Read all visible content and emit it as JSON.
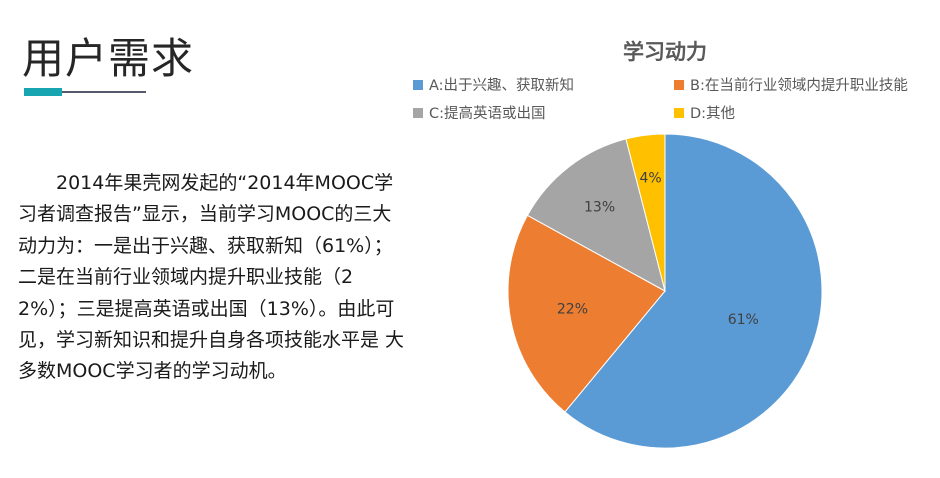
{
  "header": {
    "title": "用户需求"
  },
  "body": {
    "paragraph": "2014年果壳网发起的“2014年MOOC学习者调查报告”显示，当前学习MOOC的三大动力为：一是出于兴趣、获取新知（61%）；二是在当前行业领域内提升职业技能（22%）；三是提高英语或出国（13%）。由此可见，学习新知识和提升自身各项技能水平是 大多数MOOC学习者的学习动机。"
  },
  "colors": {
    "accent": "#17a5b1",
    "underline": "#555a6b"
  },
  "chart_data": {
    "type": "pie",
    "title": "学习动力",
    "legend_position": "top",
    "slices": [
      {
        "name": "A:出于兴趣、获取新知",
        "value": 61,
        "label": "61%",
        "color": "#5b9bd5"
      },
      {
        "name": "B:在当前行业领域内提升职业技能",
        "value": 22,
        "label": "22%",
        "color": "#ed7d31"
      },
      {
        "name": "C:提高英语或出国",
        "value": 13,
        "label": "13%",
        "color": "#a5a5a5"
      },
      {
        "name": "D:其他",
        "value": 4,
        "label": "4%",
        "color": "#ffc000"
      }
    ]
  }
}
